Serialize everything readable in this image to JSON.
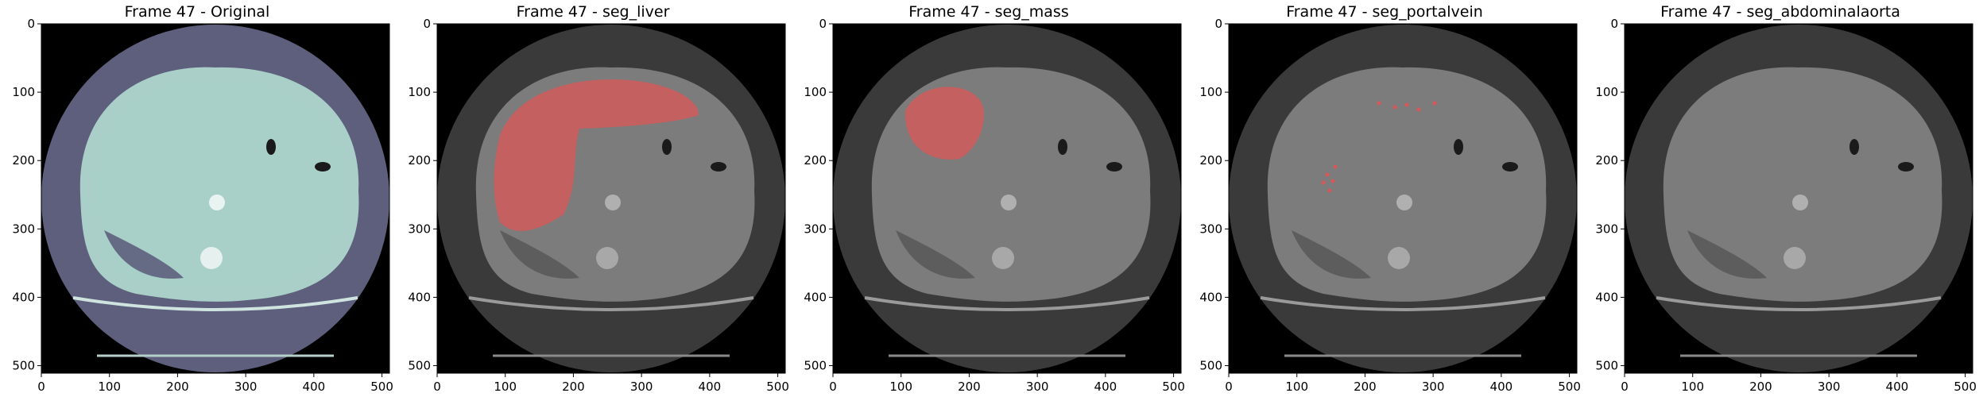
{
  "panels": [
    {
      "title": "Frame 47 - Original",
      "style": "original",
      "mask": "none"
    },
    {
      "title": "Frame 47 - seg_liver",
      "style": "gray",
      "mask": "liver"
    },
    {
      "title": "Frame 47 - seg_mass",
      "style": "gray",
      "mask": "mass"
    },
    {
      "title": "Frame 47 - seg_portalvein",
      "style": "gray",
      "mask": "portalvein"
    },
    {
      "title": "Frame 47 - seg_abdominalaorta",
      "style": "gray",
      "mask": "none"
    }
  ],
  "axis": {
    "x_ticks": [
      "0",
      "100",
      "200",
      "300",
      "400",
      "500"
    ],
    "y_ticks": [
      "0",
      "100",
      "200",
      "300",
      "400",
      "500"
    ],
    "xlim": [
      0,
      511
    ],
    "ylim": [
      0,
      511
    ]
  },
  "colors": {
    "original_background": "#000000",
    "original_body": "#5d5f7c",
    "original_tissue": "#a9cfc8",
    "gray_outer": "#3a3a3a",
    "gray_body": "#5a5a5a",
    "gray_tissue": "#7c7c7c",
    "mask_overlay": "#d85858"
  }
}
